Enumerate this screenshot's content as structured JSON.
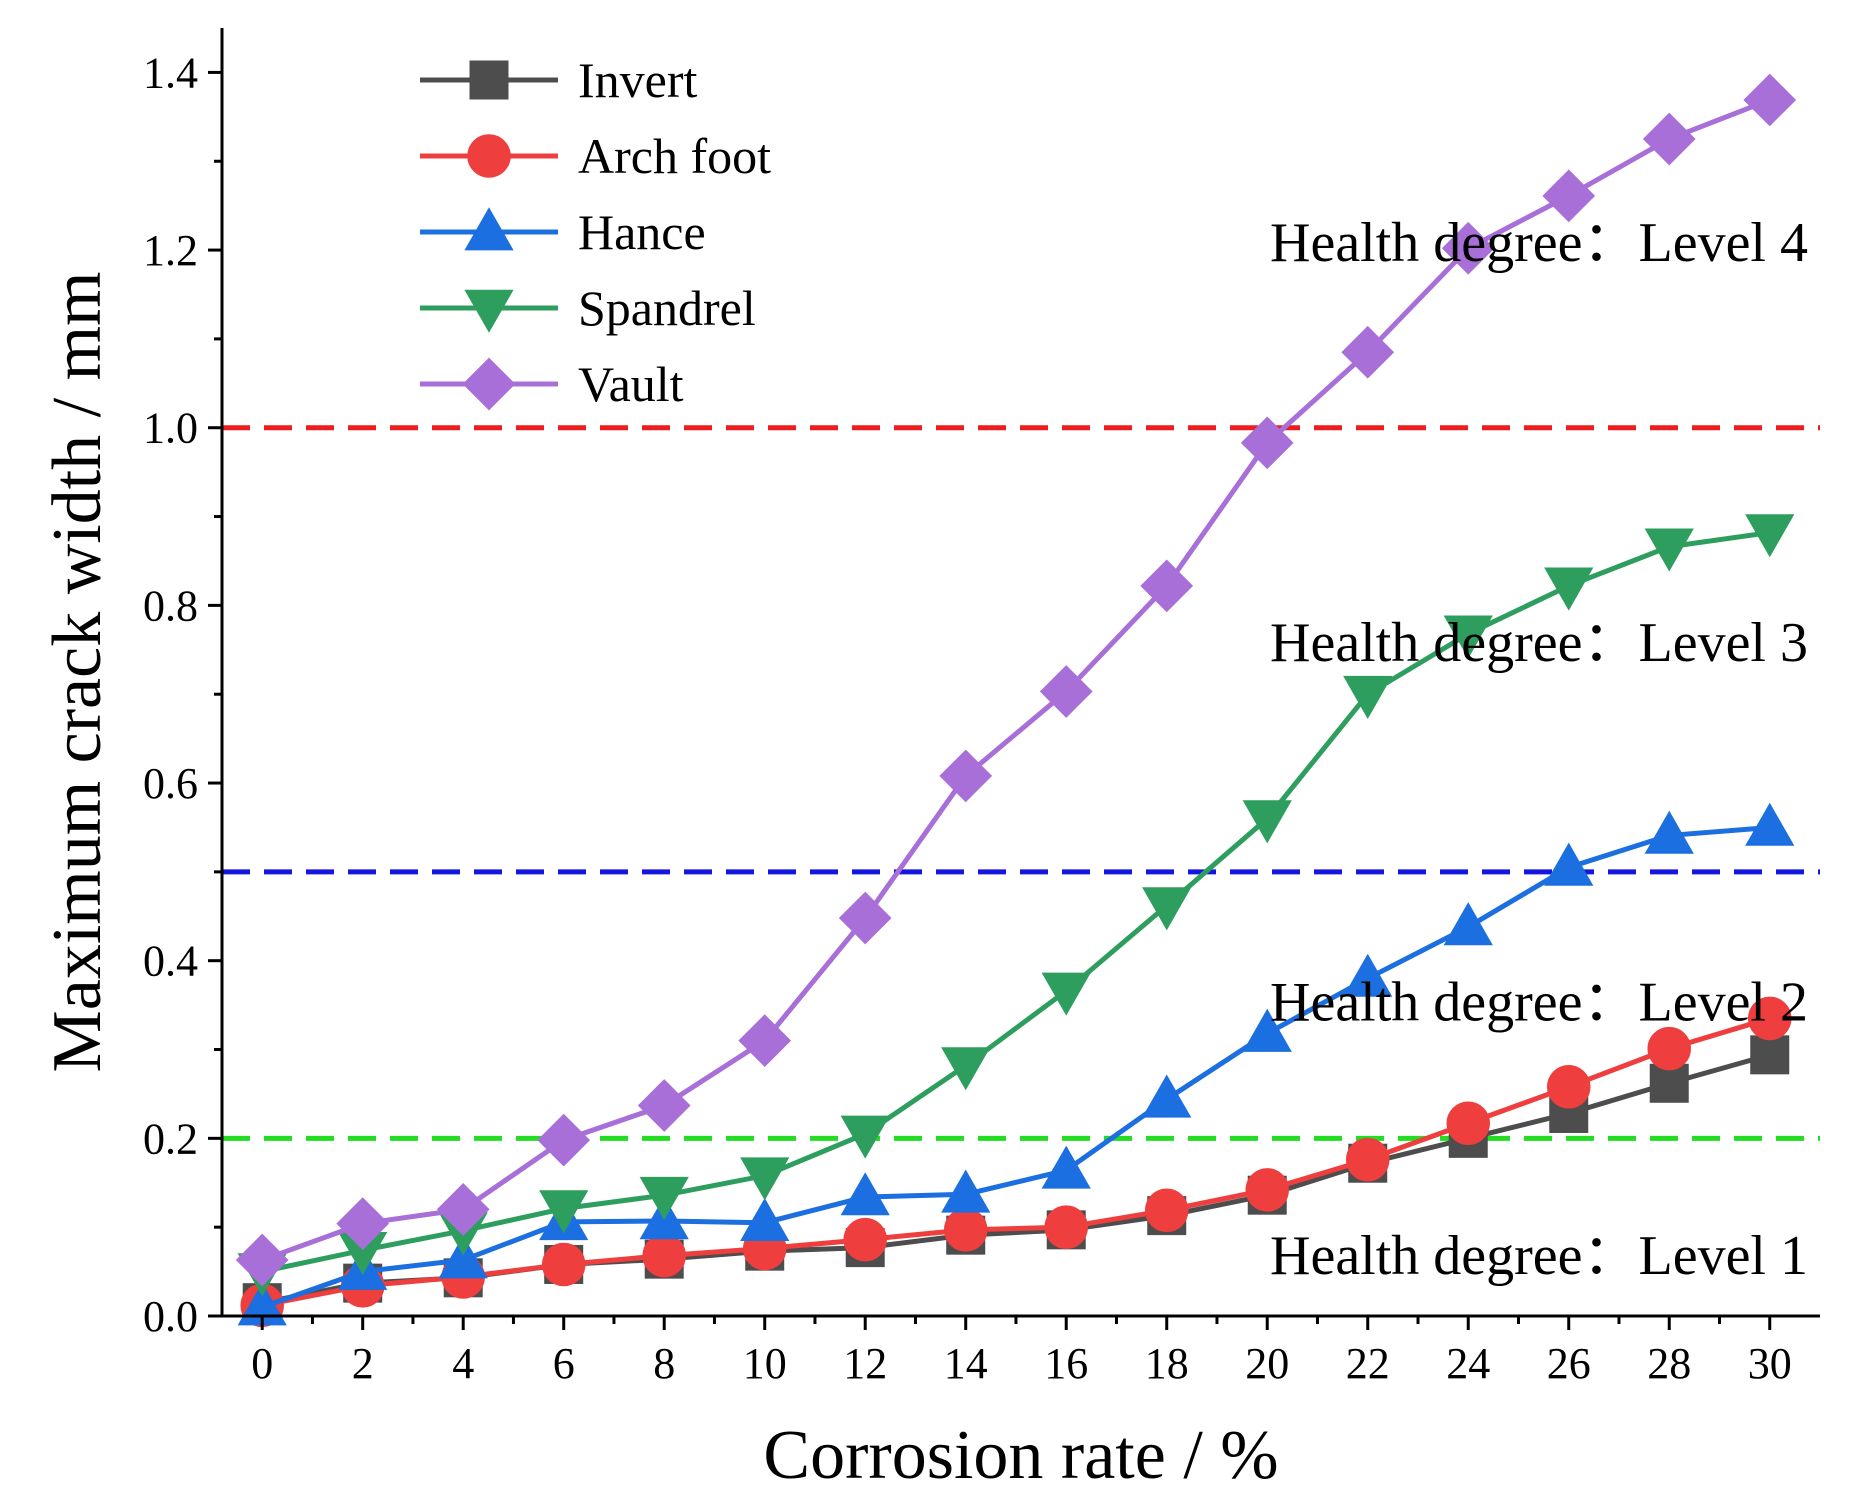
{
  "chart_data": {
    "type": "line",
    "xlabel": "Corrosion rate / %",
    "ylabel": "Maximum crack width / mm",
    "xlim": [
      -0.8,
      31.0
    ],
    "ylim": [
      0.0,
      1.45
    ],
    "x": [
      0,
      2,
      4,
      6,
      8,
      10,
      12,
      14,
      16,
      18,
      20,
      22,
      24,
      26,
      28,
      30
    ],
    "xticks": [
      "0",
      "2",
      "4",
      "6",
      "8",
      "10",
      "12",
      "14",
      "16",
      "18",
      "20",
      "22",
      "24",
      "26",
      "28",
      "30"
    ],
    "yticks": [
      "0.0",
      "0.2",
      "0.4",
      "0.6",
      "0.8",
      "1.0",
      "1.2",
      "1.4"
    ],
    "ytick_values": [
      0.0,
      0.2,
      0.4,
      0.6,
      0.8,
      1.0,
      1.2,
      1.4
    ],
    "legend_position": "top-left",
    "series": [
      {
        "name": "Invert",
        "color": "#4d4d4d",
        "marker": "square",
        "values": [
          0.015,
          0.037,
          0.043,
          0.058,
          0.064,
          0.073,
          0.077,
          0.091,
          0.097,
          0.113,
          0.136,
          0.172,
          0.2,
          0.228,
          0.262,
          0.294
        ]
      },
      {
        "name": "Arch foot",
        "color": "#ef3e3e",
        "marker": "circle",
        "values": [
          0.012,
          0.034,
          0.044,
          0.058,
          0.068,
          0.076,
          0.086,
          0.097,
          0.1,
          0.119,
          0.142,
          0.176,
          0.217,
          0.258,
          0.301,
          0.335
        ]
      },
      {
        "name": "Hance",
        "color": "#1c6fe0",
        "marker": "triangle-up",
        "values": [
          0.01,
          0.05,
          0.063,
          0.106,
          0.107,
          0.105,
          0.134,
          0.137,
          0.164,
          0.244,
          0.318,
          0.38,
          0.438,
          0.505,
          0.541,
          0.55
        ]
      },
      {
        "name": "Spandrel",
        "color": "#2e9e5e",
        "marker": "triangle-down",
        "values": [
          0.05,
          0.074,
          0.096,
          0.121,
          0.136,
          0.158,
          0.205,
          0.282,
          0.366,
          0.462,
          0.56,
          0.7,
          0.768,
          0.822,
          0.866,
          0.882
        ]
      },
      {
        "name": "Vault",
        "color": "#a96fd8",
        "marker": "diamond",
        "values": [
          0.063,
          0.104,
          0.12,
          0.198,
          0.237,
          0.31,
          0.448,
          0.608,
          0.703,
          0.822,
          0.983,
          1.085,
          1.202,
          1.261,
          1.325,
          1.369
        ]
      }
    ],
    "thresholds": [
      {
        "value": 0.2,
        "color": "#22dd22"
      },
      {
        "value": 0.5,
        "color": "#1515e0"
      },
      {
        "value": 1.0,
        "color": "#ee1c1c"
      }
    ],
    "annotations": [
      {
        "text": "Health degree：Level 4",
        "y": 1.21
      },
      {
        "text": "Health degree：Level 3",
        "y": 0.76
      },
      {
        "text": "Health degree：Level 2",
        "y": 0.355
      },
      {
        "text": "Health degree：Level 1",
        "y": 0.07
      }
    ]
  }
}
